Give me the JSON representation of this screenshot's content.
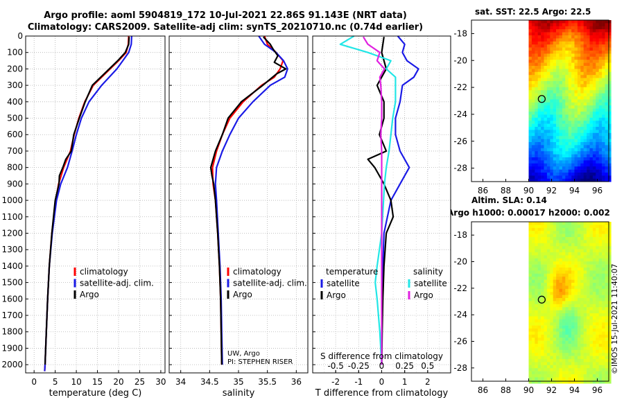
{
  "title": {
    "line1": "Argo profile: aoml 5904819_172 10-Jul-2021 22.86S 91.143E (NRT data)",
    "line2": "Climatology: CARS2009. Satellite-adj clim: synTS_20210710.nc (0.74d earlier)"
  },
  "stamp": "©IMOS 15-Jul-2021 11:40:07",
  "colors": {
    "climatology": "#ff0000",
    "satellite": "#1a1ae6",
    "argo": "#000000",
    "sat_cyan": "#22e6e6",
    "argo_magenta": "#e020e0"
  },
  "chart_data": [
    {
      "type": "line",
      "id": "temperature",
      "xlabel": "temperature (deg C)",
      "ylabel": "",
      "xlim": [
        -2,
        31
      ],
      "ylim": [
        2050,
        0
      ],
      "xticks": [
        "0",
        "5",
        "10",
        "15",
        "20",
        "25",
        "30"
      ],
      "yticks": [
        "0",
        "100",
        "200",
        "300",
        "400",
        "500",
        "600",
        "700",
        "800",
        "900",
        "1000",
        "1100",
        "1200",
        "1300",
        "1400",
        "1500",
        "1600",
        "1700",
        "1800",
        "1900",
        "2000"
      ],
      "legend": [
        "climatology",
        "satellite-adj. clim.",
        "Argo"
      ],
      "series": [
        {
          "name": "climatology",
          "depth": [
            0,
            50,
            100,
            150,
            200,
            300,
            400,
            500,
            600,
            700,
            800,
            900,
            1000,
            1200,
            1400,
            1600,
            1800,
            2000,
            2040
          ],
          "values": [
            22.4,
            22.3,
            21.8,
            20,
            18,
            14,
            12,
            10.6,
            9.5,
            8.6,
            7,
            5.8,
            5.1,
            4.2,
            3.6,
            3.2,
            2.9,
            2.6,
            2.5
          ]
        },
        {
          "name": "satellite-adj. clim.",
          "depth": [
            0,
            50,
            100,
            150,
            200,
            300,
            400,
            500,
            600,
            700,
            800,
            900,
            1000,
            1200,
            1400,
            1600,
            1800,
            2000,
            2040
          ],
          "values": [
            23.1,
            23,
            22.4,
            21,
            19.6,
            16,
            13,
            11.2,
            10,
            9,
            7.9,
            6.3,
            5.3,
            4.3,
            3.6,
            3.2,
            2.9,
            2.6,
            2.5
          ]
        },
        {
          "name": "Argo",
          "depth": [
            5,
            50,
            100,
            150,
            200,
            300,
            400,
            500,
            600,
            700,
            750,
            800,
            850,
            900,
            1000,
            1200,
            1400,
            1600,
            1800,
            2000
          ],
          "values": [
            22.5,
            22.4,
            21.6,
            19.8,
            17.8,
            13.8,
            12.1,
            10.7,
            9.4,
            8.8,
            7.5,
            6.8,
            6,
            5.9,
            5,
            4.2,
            3.6,
            3.2,
            2.9,
            2.6
          ]
        }
      ]
    },
    {
      "type": "line",
      "id": "salinity",
      "xlabel": "salinity",
      "xlim": [
        33.8,
        36.2
      ],
      "ylim": [
        2050,
        0
      ],
      "xticks": [
        "34",
        "34.5",
        "35",
        "35.5",
        "36"
      ],
      "legend": [
        "climatology",
        "satellite-adj. clim.",
        "Argo"
      ],
      "annotation": [
        "UW, Argo",
        "PI: STEPHEN RISER"
      ],
      "series": [
        {
          "name": "climatology",
          "depth": [
            0,
            50,
            100,
            150,
            200,
            250,
            300,
            400,
            500,
            600,
            700,
            800,
            900,
            1000,
            1200,
            1400,
            1600,
            1800,
            2000
          ],
          "values": [
            35.45,
            35.5,
            35.65,
            35.77,
            35.72,
            35.62,
            35.4,
            35.08,
            34.85,
            34.72,
            34.62,
            34.55,
            34.56,
            34.6,
            34.64,
            34.67,
            34.69,
            34.7,
            34.71
          ]
        },
        {
          "name": "satellite-adj. clim.",
          "depth": [
            0,
            50,
            100,
            150,
            200,
            250,
            300,
            400,
            500,
            600,
            700,
            800,
            900,
            1000,
            1200,
            1400,
            1600,
            1800,
            2000
          ],
          "values": [
            35.35,
            35.45,
            35.65,
            35.78,
            35.85,
            35.8,
            35.55,
            35.25,
            35.0,
            34.85,
            34.72,
            34.62,
            34.6,
            34.62,
            34.65,
            34.68,
            34.7,
            34.71,
            34.72
          ]
        },
        {
          "name": "Argo",
          "depth": [
            5,
            50,
            80,
            120,
            160,
            200,
            230,
            300,
            400,
            500,
            600,
            700,
            800,
            850,
            900,
            1000,
            1200,
            1400,
            1600,
            1800,
            2000
          ],
          "values": [
            35.43,
            35.55,
            35.6,
            35.68,
            35.62,
            35.82,
            35.66,
            35.42,
            35.05,
            34.82,
            34.72,
            34.6,
            34.52,
            34.54,
            34.57,
            34.6,
            34.64,
            34.67,
            34.69,
            34.7,
            34.71
          ]
        }
      ]
    },
    {
      "type": "line",
      "id": "difference",
      "xlabel": "T difference from climatology",
      "x2label": "S difference from climatology",
      "xlim": [
        -3,
        3
      ],
      "ylim": [
        2050,
        0
      ],
      "xticks": [
        "-2",
        "-1",
        "0",
        "1",
        "2"
      ],
      "x2ticks": [
        "-0.5",
        "-0.25",
        "0",
        "0.25",
        "0.5"
      ],
      "legend_left_title": "temperature",
      "legend_right_title": "salinity",
      "legend_left": [
        "satellite",
        "Argo"
      ],
      "legend_right": [
        "satellite",
        "Argo"
      ],
      "series": [
        {
          "name": "temperature satellite",
          "depth": [
            0,
            50,
            100,
            150,
            200,
            250,
            300,
            400,
            500,
            600,
            700,
            800,
            900,
            1000,
            1200,
            1400,
            1600,
            1800,
            2000
          ],
          "values": [
            0.7,
            1.0,
            0.9,
            1.1,
            1.6,
            1.4,
            0.9,
            0.8,
            0.6,
            0.6,
            0.8,
            1.2,
            0.8,
            0.4,
            0.1,
            0.05,
            0.02,
            0.0,
            0.0
          ]
        },
        {
          "name": "temperature Argo",
          "depth": [
            5,
            100,
            200,
            300,
            400,
            500,
            600,
            700,
            750,
            800,
            850,
            900,
            1000,
            1100,
            1200,
            1400,
            1600,
            1800,
            2000
          ],
          "values": [
            0.1,
            0,
            0.2,
            -0.2,
            0.1,
            0.1,
            -0.1,
            0.2,
            -0.6,
            -0.3,
            -0.1,
            0.1,
            0.4,
            0.5,
            0.2,
            0.1,
            0.05,
            0.02,
            0.0
          ]
        },
        {
          "name": "salinity satellite",
          "depth": [
            0,
            50,
            100,
            150,
            200,
            250,
            300,
            400,
            500,
            600,
            700,
            800,
            900,
            1000,
            1200,
            1400,
            1500,
            1600,
            1800,
            2000
          ],
          "values": [
            -0.3,
            -0.45,
            -0.15,
            0.1,
            0.05,
            0.15,
            0.15,
            0.15,
            0.12,
            0.1,
            0.08,
            0.05,
            0.03,
            0.02,
            0.0,
            -0.05,
            -0.07,
            -0.05,
            -0.02,
            0.0
          ]
        },
        {
          "name": "salinity Argo",
          "depth": [
            5,
            50,
            100,
            150,
            200,
            250,
            300,
            400,
            500,
            600,
            700,
            800,
            900,
            1000,
            1200,
            1400,
            1600,
            1800,
            2000
          ],
          "values": [
            -0.2,
            -0.15,
            -0.02,
            -0.05,
            0.03,
            -0.02,
            -0.01,
            0.0,
            0.0,
            -0.01,
            0.0,
            0.0,
            0.0,
            0.0,
            0.0,
            0.0,
            0.0,
            0.0,
            0.0
          ]
        }
      ]
    },
    {
      "type": "heatmap",
      "id": "sst-map",
      "title": "sat. SST: 22.5 Argo: 22.5",
      "xlim": [
        85,
        97
      ],
      "ylim": [
        -29,
        -17
      ],
      "xticks": [
        "86",
        "88",
        "90",
        "92",
        "94",
        "96"
      ],
      "yticks": [
        "-18",
        "-20",
        "-22",
        "-24",
        "-26",
        "-28"
      ],
      "marker": {
        "lon": 91.143,
        "lat": -22.86
      }
    },
    {
      "type": "heatmap",
      "id": "sla-map",
      "title": "Altim. SLA: 0.14",
      "subtitle": "Argo h1000: 0.00017 h2000: 0.002",
      "xlim": [
        85,
        97
      ],
      "ylim": [
        -29,
        -17
      ],
      "xticks": [
        "86",
        "88",
        "90",
        "92",
        "94",
        "96"
      ],
      "yticks": [
        "-18",
        "-20",
        "-22",
        "-24",
        "-26",
        "-28"
      ],
      "marker": {
        "lon": 91.143,
        "lat": -22.86
      }
    }
  ]
}
